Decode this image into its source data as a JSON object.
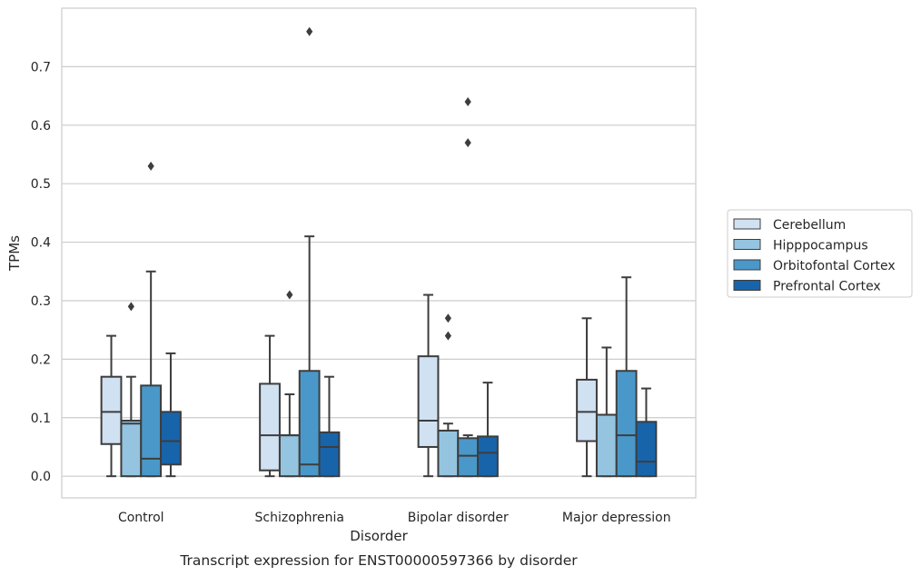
{
  "chart_data": {
    "type": "box",
    "caption": "Transcript expression for ENST00000597366 by disorder",
    "xlabel": "Disorder",
    "ylabel": "TPMs",
    "ylim": [
      -0.037,
      0.8
    ],
    "yticks": [
      "0.0",
      "0.1",
      "0.2",
      "0.3",
      "0.4",
      "0.5",
      "0.6",
      "0.7"
    ],
    "grid": "horizontal",
    "legend_position": "right",
    "categories": [
      "Control",
      "Schizophrenia",
      "Bipolar disorder",
      "Major depression"
    ],
    "series": [
      {
        "name": "Cerebellum",
        "color": "#d0e1f2",
        "boxes": [
          {
            "whisker_low": 0.0,
            "q1": 0.055,
            "median": 0.11,
            "q3": 0.17,
            "whisker_high": 0.24,
            "outliers": []
          },
          {
            "whisker_low": 0.0,
            "q1": 0.01,
            "median": 0.07,
            "q3": 0.158,
            "whisker_high": 0.24,
            "outliers": []
          },
          {
            "whisker_low": 0.0,
            "q1": 0.05,
            "median": 0.095,
            "q3": 0.205,
            "whisker_high": 0.31,
            "outliers": []
          },
          {
            "whisker_low": 0.0,
            "q1": 0.06,
            "median": 0.11,
            "q3": 0.165,
            "whisker_high": 0.27,
            "outliers": []
          }
        ]
      },
      {
        "name": "Hipppocampus",
        "color": "#94c4df",
        "boxes": [
          {
            "whisker_low": 0.0,
            "q1": 0.0,
            "median": 0.09,
            "q3": 0.095,
            "whisker_high": 0.17,
            "outliers": [
              0.29
            ]
          },
          {
            "whisker_low": 0.0,
            "q1": 0.0,
            "median": 0.07,
            "q3": 0.07,
            "whisker_high": 0.14,
            "outliers": [
              0.31
            ]
          },
          {
            "whisker_low": 0.0,
            "q1": 0.0,
            "median": 0.078,
            "q3": 0.078,
            "whisker_high": 0.09,
            "outliers": [
              0.27,
              0.24
            ]
          },
          {
            "whisker_low": 0.0,
            "q1": 0.0,
            "median": 0.105,
            "q3": 0.105,
            "whisker_high": 0.22,
            "outliers": []
          }
        ]
      },
      {
        "name": "Orbitofontal Cortex",
        "color": "#4a98c9",
        "boxes": [
          {
            "whisker_low": 0.0,
            "q1": 0.0,
            "median": 0.03,
            "q3": 0.155,
            "whisker_high": 0.35,
            "outliers": [
              0.53
            ]
          },
          {
            "whisker_low": 0.0,
            "q1": 0.0,
            "median": 0.02,
            "q3": 0.18,
            "whisker_high": 0.41,
            "outliers": [
              0.76
            ]
          },
          {
            "whisker_low": 0.0,
            "q1": 0.0,
            "median": 0.035,
            "q3": 0.065,
            "whisker_high": 0.07,
            "outliers": [
              0.64,
              0.57
            ]
          },
          {
            "whisker_low": 0.0,
            "q1": 0.0,
            "median": 0.07,
            "q3": 0.18,
            "whisker_high": 0.34,
            "outliers": []
          }
        ]
      },
      {
        "name": "Prefrontal Cortex",
        "color": "#1764ab",
        "boxes": [
          {
            "whisker_low": 0.0,
            "q1": 0.02,
            "median": 0.06,
            "q3": 0.11,
            "whisker_high": 0.21,
            "outliers": []
          },
          {
            "whisker_low": 0.0,
            "q1": 0.0,
            "median": 0.05,
            "q3": 0.075,
            "whisker_high": 0.17,
            "outliers": []
          },
          {
            "whisker_low": 0.0,
            "q1": 0.0,
            "median": 0.04,
            "q3": 0.068,
            "whisker_high": 0.16,
            "outliers": []
          },
          {
            "whisker_low": 0.0,
            "q1": 0.0,
            "median": 0.025,
            "q3": 0.093,
            "whisker_high": 0.15,
            "outliers": []
          }
        ]
      }
    ]
  }
}
